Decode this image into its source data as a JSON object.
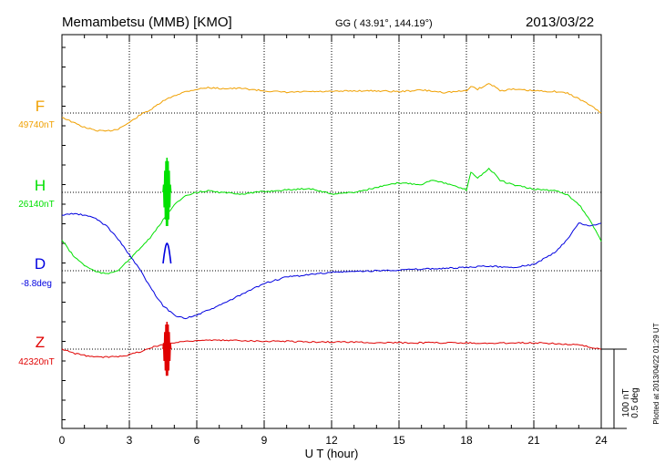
{
  "header": {
    "station": "Memambetsu (MMB)  [KMO]",
    "coords": "GG ( 43.91°, 144.19°)",
    "date": "2013/03/22"
  },
  "footer": {
    "plotted": "Plotted at 2013/04/22 01:29 UT"
  },
  "chart_data": {
    "type": "line",
    "title": "Memambetsu (MMB)  [KMO]",
    "xlabel": "U T (hour)",
    "xlim": [
      0,
      24
    ],
    "xticks": [
      0,
      3,
      6,
      9,
      12,
      15,
      18,
      21,
      24
    ],
    "xtick_labels": [
      "0",
      "3",
      "6",
      "9",
      "12",
      "15",
      "18",
      "21",
      "24"
    ],
    "grid": true,
    "scale": {
      "nT": "100 nT",
      "deg": "0.5 deg"
    },
    "series": [
      {
        "name": "F",
        "baseline_label": "49740nT",
        "color": "#f0a000",
        "hours": [
          0,
          0.5,
          1,
          1.5,
          2,
          2.5,
          3,
          3.5,
          4,
          4.5,
          5,
          5.5,
          6,
          6.5,
          7,
          8,
          9,
          10,
          11,
          12,
          13,
          14,
          15,
          16,
          17,
          18,
          18.2,
          18.5,
          19,
          19.3,
          19.5,
          20,
          21,
          22,
          22.5,
          23,
          23.5,
          24
        ],
        "values": [
          -5,
          -12,
          -18,
          -22,
          -23,
          -20,
          -12,
          -2,
          5,
          15,
          22,
          27,
          30,
          32,
          31,
          31,
          28,
          26,
          27,
          27,
          28,
          28,
          27,
          29,
          26,
          28,
          34,
          30,
          37,
          33,
          28,
          30,
          28,
          27,
          25,
          18,
          10,
          0
        ]
      },
      {
        "name": "H",
        "baseline_label": "26140nT",
        "color": "#00e000",
        "hours": [
          0,
          0.5,
          1,
          1.5,
          2,
          2.5,
          3,
          3.5,
          4,
          4.5,
          5,
          5.5,
          6,
          6.5,
          7,
          8,
          9,
          10,
          11,
          12,
          13,
          14,
          15,
          16,
          16.5,
          17,
          18,
          18.2,
          18.5,
          19,
          19.3,
          19.5,
          20,
          21,
          22,
          22.5,
          23,
          23.5,
          24
        ],
        "values": [
          -60,
          -80,
          -92,
          -100,
          -103,
          -98,
          -85,
          -70,
          -55,
          -35,
          -15,
          -5,
          0,
          2,
          0,
          -2,
          1,
          3,
          5,
          -2,
          0,
          6,
          12,
          10,
          16,
          12,
          3,
          26,
          18,
          30,
          22,
          15,
          10,
          4,
          2,
          -3,
          -15,
          -35,
          -62
        ]
      },
      {
        "name": "D",
        "baseline_label": "-8.8deg",
        "color": "#0000e0",
        "hours": [
          0,
          0.5,
          1,
          1.5,
          2,
          2.5,
          3,
          3.5,
          4,
          4.5,
          5,
          5.5,
          6,
          7,
          8,
          9,
          10,
          12,
          14,
          16,
          18,
          19,
          20,
          21,
          22,
          22.5,
          23,
          23.5,
          24
        ],
        "values": [
          0.35,
          0.36,
          0.35,
          0.33,
          0.28,
          0.2,
          0.1,
          0.0,
          -0.12,
          -0.22,
          -0.28,
          -0.3,
          -0.28,
          -0.22,
          -0.15,
          -0.08,
          -0.04,
          -0.01,
          0.0,
          0.01,
          0.02,
          0.03,
          0.02,
          0.04,
          0.12,
          0.2,
          0.3,
          0.28,
          0.3
        ]
      },
      {
        "name": "Z",
        "baseline_label": "42320nT",
        "color": "#e00000",
        "hours": [
          0,
          0.5,
          1,
          1.5,
          2,
          2.5,
          3,
          3.5,
          4,
          4.5,
          5,
          5.5,
          6,
          7,
          8,
          9,
          10,
          11,
          12,
          13,
          14,
          15,
          16,
          17,
          18,
          19,
          20,
          21,
          22,
          23,
          24
        ],
        "values": [
          0,
          -5,
          -8,
          -10,
          -10,
          -9,
          -7,
          -3,
          2,
          6,
          8,
          10,
          11,
          11,
          11,
          10,
          10,
          9,
          9,
          9,
          8,
          8,
          8,
          8,
          8,
          7,
          8,
          8,
          7,
          5,
          0
        ]
      }
    ],
    "disturbance": {
      "hour_start": 4.5,
      "hour_end": 4.85,
      "note": "spike at ~4.7 UT in H, D, Z"
    }
  }
}
